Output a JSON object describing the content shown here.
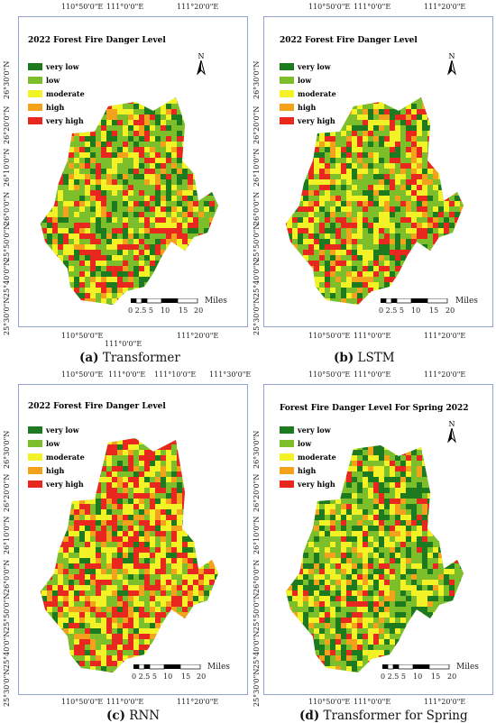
{
  "panels": [
    {
      "id": "a",
      "legend_title": "2022 Forest Fire Danger Level",
      "legend": [
        "very low",
        "low",
        "moderate",
        "high",
        "very high"
      ],
      "top_ticks": [
        "110°50'0\"E",
        "111°0'0\"E",
        "111°20'0\"E"
      ],
      "bottom_ticks": [
        "110°50'0\"E",
        "111°0'0\"E",
        "111°20'0\"E"
      ],
      "lat_ticks": [
        "26°30'0\"N",
        "26°20'0\"N",
        "26°10'0\"N",
        "26°0'0\"N",
        "25°50'0\"N",
        "25°40'0\"N",
        "25°30'0\"N"
      ],
      "scale_numbers": [
        "0 2.5 5",
        "10",
        "15",
        "20"
      ],
      "scale_unit": "Miles",
      "north": "N",
      "caption_letter": "(a)",
      "caption_text": "Transformer"
    },
    {
      "id": "b",
      "legend_title": "2022 Forest Fire Danger Level",
      "legend": [
        "very low",
        "low",
        "moderate",
        "high",
        "very high"
      ],
      "top_ticks": [
        "110°50'0\"E",
        "111°0'0\"E",
        "111°20'0\"E"
      ],
      "bottom_ticks": [
        "110°50'0\"E",
        "111°0'0\"E",
        "111°20'0\"E"
      ],
      "lat_ticks": [
        "26°30'0\"N",
        "26°20'0\"N",
        "26°10'0\"N",
        "26°0'0\"N",
        "25°50'0\"N",
        "25°40'0\"N",
        "25°30'0\"N"
      ],
      "scale_numbers": [
        "0 2.5 5",
        "10",
        "15",
        "20"
      ],
      "scale_unit": "Miles",
      "north": "N",
      "caption_letter": "(b)",
      "caption_text": "LSTM"
    },
    {
      "id": "c",
      "legend_title": "2022 Forest Fire Danger Level",
      "legend": [
        "very low",
        "low",
        "moderate",
        "high",
        "very high"
      ],
      "top_ticks": [
        "110°50'0\"E",
        "111°0'0\"E",
        "111°10'0\"E",
        "111°30'0\"E"
      ],
      "bottom_ticks": [
        "110°50'0\"E",
        "111°0'0\"E",
        "111°20'0\"E"
      ],
      "lat_ticks": [
        "26°30'0\"N",
        "26°20'0\"N",
        "26°10'0\"N",
        "26°0'0\"N",
        "25°50'0\"N",
        "25°40'0\"N",
        "25°30'0\"N"
      ],
      "scale_numbers": [
        "0 2.5 5",
        "10",
        "15",
        "20"
      ],
      "scale_unit": "Miles",
      "north": "N",
      "caption_letter": "(c)",
      "caption_text": "RNN"
    },
    {
      "id": "d",
      "legend_title": "Forest Fire Danger Level For Spring 2022",
      "legend": [
        "very low",
        "low",
        "moderate",
        "high",
        "very high"
      ],
      "top_ticks": [
        "110°50'0\"E",
        "111°0'0\"E",
        "111°20'0\"E"
      ],
      "bottom_ticks": [
        "110°50'0\"E",
        "111°0'0\"E",
        "111°20'0\"E"
      ],
      "lat_ticks": [
        "26°30'0\"N",
        "26°20'0\"N",
        "26°10'0\"N",
        "26°0'0\"N",
        "25°50'0\"N",
        "25°40'0\"N",
        "25°30'0\"N"
      ],
      "scale_numbers": [
        "0 2.5 5",
        "10",
        "15",
        "20"
      ],
      "scale_unit": "Miles",
      "north": "N",
      "caption_letter": "(d)",
      "caption_text": "Transformer for Spring"
    }
  ],
  "colors": {
    "very_low": "#1e7a1e",
    "low": "#7cbf2a",
    "moderate": "#f2f226",
    "high": "#f4a21c",
    "very_high": "#e8281e",
    "frame": "#8fa6cf"
  }
}
